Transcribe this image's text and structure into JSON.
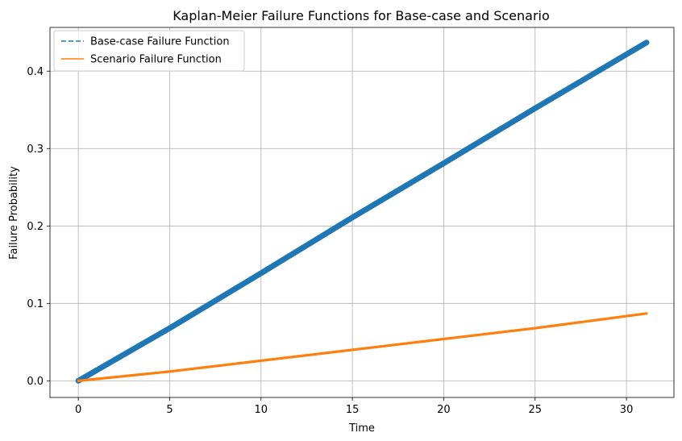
{
  "chart_data": {
    "type": "line",
    "title": "Kaplan-Meier Failure Functions for Base-case and Scenario",
    "xlabel": "Time",
    "ylabel": "Failure Probability",
    "xlim": [
      -1.55,
      32.6
    ],
    "ylim": [
      -0.0215,
      0.4565
    ],
    "xticks": [
      0,
      5,
      10,
      15,
      20,
      25,
      30
    ],
    "yticks": [
      0.0,
      0.1,
      0.2,
      0.3,
      0.4
    ],
    "grid": true,
    "legend_position": "top-left",
    "series": [
      {
        "name": "Base-case Failure Function",
        "color": "#1f77b4",
        "style": "dashed",
        "x": [
          0,
          5,
          10,
          15,
          20,
          25,
          31.1
        ],
        "y": [
          0.0,
          0.068,
          0.139,
          0.211,
          0.281,
          0.352,
          0.437
        ]
      },
      {
        "name": "Scenario Failure Function",
        "color": "#ff7f0e",
        "style": "solid",
        "x": [
          0,
          5,
          10,
          15,
          20,
          25,
          31.1
        ],
        "y": [
          0.0,
          0.012,
          0.026,
          0.04,
          0.054,
          0.068,
          0.087
        ]
      }
    ]
  }
}
